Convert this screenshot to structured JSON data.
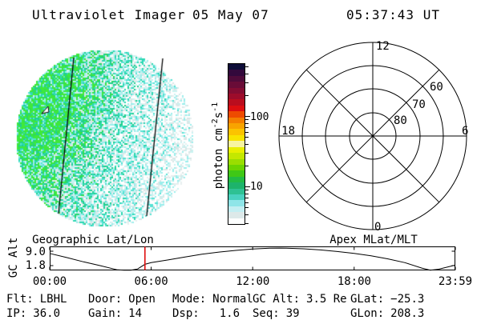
{
  "header": {
    "title": "Ultraviolet Imager",
    "date": "05 May 07",
    "time": "05:37:43 UT"
  },
  "uv_image": {
    "caption": "Geographic Lat/Lon",
    "palette": [
      "#ffffff",
      "#e7efef",
      "#d9e6e6",
      "#c9f2f1",
      "#9aeeec",
      "#55e2d4",
      "#2bd8b2",
      "#1fd08e",
      "#2edd55",
      "#3fe93a"
    ],
    "overlay_line_color": "#000000",
    "description": "circular UV counts image with speckled noise, two geographic meridian lines and a small arrow marker"
  },
  "colorbar": {
    "unit_main": "photon cm",
    "unit_sup1": "-2",
    "unit_mid": "s",
    "unit_sup2": "-1",
    "tick_labels": [
      "100",
      "10"
    ],
    "scale": "log",
    "approx_range": [
      3,
      550
    ],
    "colors": [
      "#0d0d38",
      "#33093c",
      "#4f0b3a",
      "#690c37",
      "#830c32",
      "#9d0c2b",
      "#ba0d1e",
      "#dd0e10",
      "#ee4b00",
      "#f47e00",
      "#f8a300",
      "#fbc300",
      "#f8e300",
      "#f7f4a0",
      "#e8ef00",
      "#c4e800",
      "#9ade00",
      "#6cd400",
      "#3fc816",
      "#22bb44",
      "#1db36b",
      "#2ec193",
      "#49d2c0",
      "#8fe5e8",
      "#c3eef2",
      "#dde9e9",
      "#fdffff"
    ]
  },
  "polar": {
    "title": "Apex MLat/MLT",
    "mlt_top": "12",
    "mlt_left": "18",
    "mlt_right": "6",
    "mlt_bottom": "0",
    "rings": [
      "80",
      "70",
      "60"
    ]
  },
  "orbit": {
    "title_left": "Geographic Lat/Lon",
    "ylabel": "GC Alt",
    "yticks": [
      "9.0",
      "1.8"
    ],
    "xticks": [
      "00:00",
      "06:00",
      "12:00",
      "18:00",
      "23:59"
    ],
    "current_time_hours": 5.6286
  },
  "status": {
    "rows": [
      [
        {
          "label": "Flt:",
          "value": "LBHL"
        },
        {
          "label": "Door:",
          "value": "Open"
        },
        {
          "label": "Mode:",
          "value": "Normal"
        },
        {
          "label": "GC Alt:",
          "value": "3.5 Re"
        },
        {
          "label": "GLat:",
          "value": "−25.3"
        }
      ],
      [
        {
          "label": "IP:",
          "value": "36.0"
        },
        {
          "label": "Gain:",
          "value": "14"
        },
        {
          "label": "Dsp:",
          "value": "1.6"
        },
        {
          "label": "Seq:",
          "value": "39"
        },
        {
          "label": "GLon:",
          "value": "208.3"
        }
      ]
    ]
  },
  "colors": {
    "cursor_red": "#e01010",
    "plot_black": "#000000"
  },
  "chart_data": [
    {
      "type": "line",
      "title": "GC Alt (spacecraft geocentric altitude, Re) vs UT",
      "ylabel": "GC Alt",
      "yticks": [
        9.0,
        1.8
      ],
      "xtick_labels": [
        "00:00",
        "06:00",
        "12:00",
        "18:00",
        "23:59"
      ],
      "xlim_hours": [
        0,
        23.983
      ],
      "grid": false,
      "x_hours_ut": [
        0,
        1,
        2,
        3,
        4,
        4.4,
        4.8,
        5.2,
        5.63,
        6,
        7,
        8,
        9,
        10,
        11,
        12,
        13,
        13.6,
        14,
        15,
        16,
        17,
        18,
        19,
        20,
        21,
        22,
        22.5,
        23,
        23.98
      ],
      "gc_alt_re": [
        7.3,
        5.8,
        4.2,
        2.8,
        1.25,
        1.0,
        1.0,
        1.6,
        3.3,
        3.9,
        4.9,
        6.0,
        7.0,
        7.8,
        8.4,
        8.9,
        9.2,
        9.25,
        9.2,
        9.0,
        8.6,
        8.0,
        7.3,
        6.4,
        5.3,
        3.9,
        1.9,
        1.15,
        1.5,
        3.0
      ],
      "values_estimated_from_pixels": true,
      "annotations": [
        "red vertical cursor at current time 05:37 UT"
      ]
    },
    {
      "type": "heatmap",
      "title": "Geographic Lat/Lon",
      "description": "Circular UVI photon-count image; speckled noise, brighter teal/green on left half, pale toward lower right; log colorbar ~3 to ~550 photon cm-2 s-1",
      "colorbar_ticks": [
        10,
        100
      ],
      "colorbar_unit": "photon cm-2 s-1"
    },
    {
      "type": "scatter",
      "title": "Apex MLat/MLT",
      "description": "Empty polar coordinate grid (no data points)",
      "ring_latitudes_labeled": [
        80,
        70,
        60
      ],
      "mlt_spoke_labels": [
        0,
        6,
        12,
        18
      ],
      "spokes_every_deg": 45
    }
  ]
}
